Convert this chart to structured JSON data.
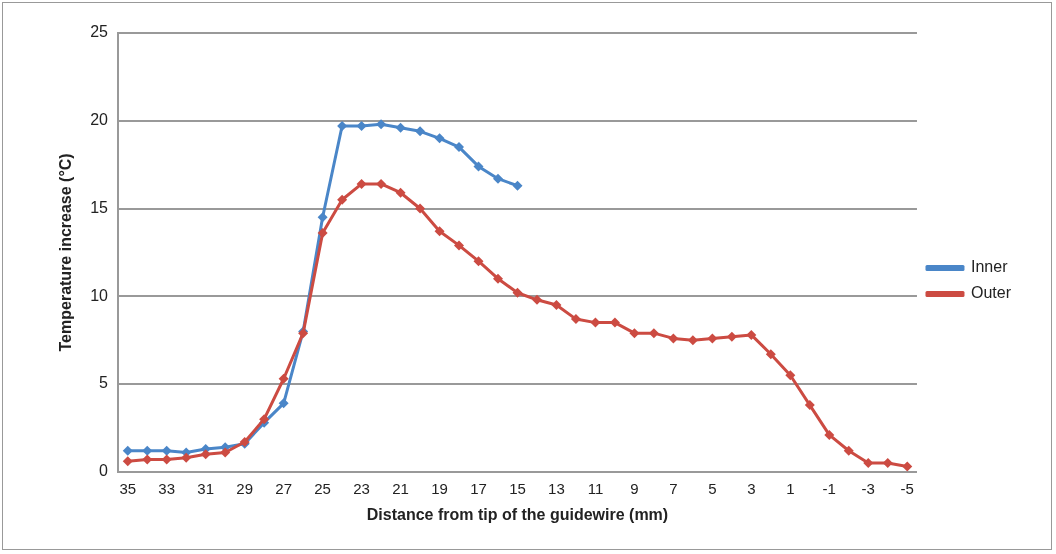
{
  "chart_data": {
    "type": "line",
    "xlabel": "Distance from tip of the guidewire (mm)",
    "ylabel": "Temperature increase (°C)",
    "categories": [
      "35",
      null,
      "33",
      null,
      "31",
      null,
      "29",
      null,
      "27",
      null,
      "25",
      null,
      "23",
      null,
      "21",
      null,
      "19",
      null,
      "17",
      null,
      "15",
      null,
      "13",
      null,
      "11",
      null,
      "9",
      null,
      "7",
      null,
      "5",
      null,
      "3",
      null,
      "1",
      null,
      "-1",
      null,
      "-3",
      null,
      "-5"
    ],
    "series": [
      {
        "name": "Inner",
        "color": "#4a86c8",
        "values": [
          1.2,
          1.2,
          1.2,
          1.1,
          1.3,
          1.4,
          1.6,
          2.8,
          3.9,
          8.0,
          14.5,
          19.7,
          19.7,
          19.8,
          19.6,
          19.4,
          19.0,
          18.5,
          17.4,
          16.7,
          16.3,
          null,
          null,
          null,
          null,
          null,
          null,
          null,
          null,
          null,
          null,
          null,
          null,
          null,
          null,
          null,
          null,
          null,
          null,
          null,
          null
        ]
      },
      {
        "name": "Outer",
        "color": "#cc4b42",
        "values": [
          0.6,
          0.7,
          0.7,
          0.8,
          1.0,
          1.1,
          1.7,
          3.0,
          5.3,
          7.9,
          13.6,
          15.5,
          16.4,
          16.4,
          15.9,
          15.0,
          13.7,
          12.9,
          12.0,
          11.0,
          10.2,
          9.8,
          9.5,
          8.7,
          8.5,
          8.5,
          7.9,
          7.9,
          7.6,
          7.5,
          7.6,
          7.7,
          7.8,
          6.7,
          5.5,
          3.8,
          2.1,
          1.2,
          0.5,
          0.5,
          0.3
        ]
      }
    ],
    "ylim": [
      0,
      25
    ],
    "yticks": [
      0,
      5,
      10,
      15,
      20,
      25
    ],
    "grid": "y",
    "legend": "right",
    "marker": "diamond",
    "line_style": "solid"
  }
}
